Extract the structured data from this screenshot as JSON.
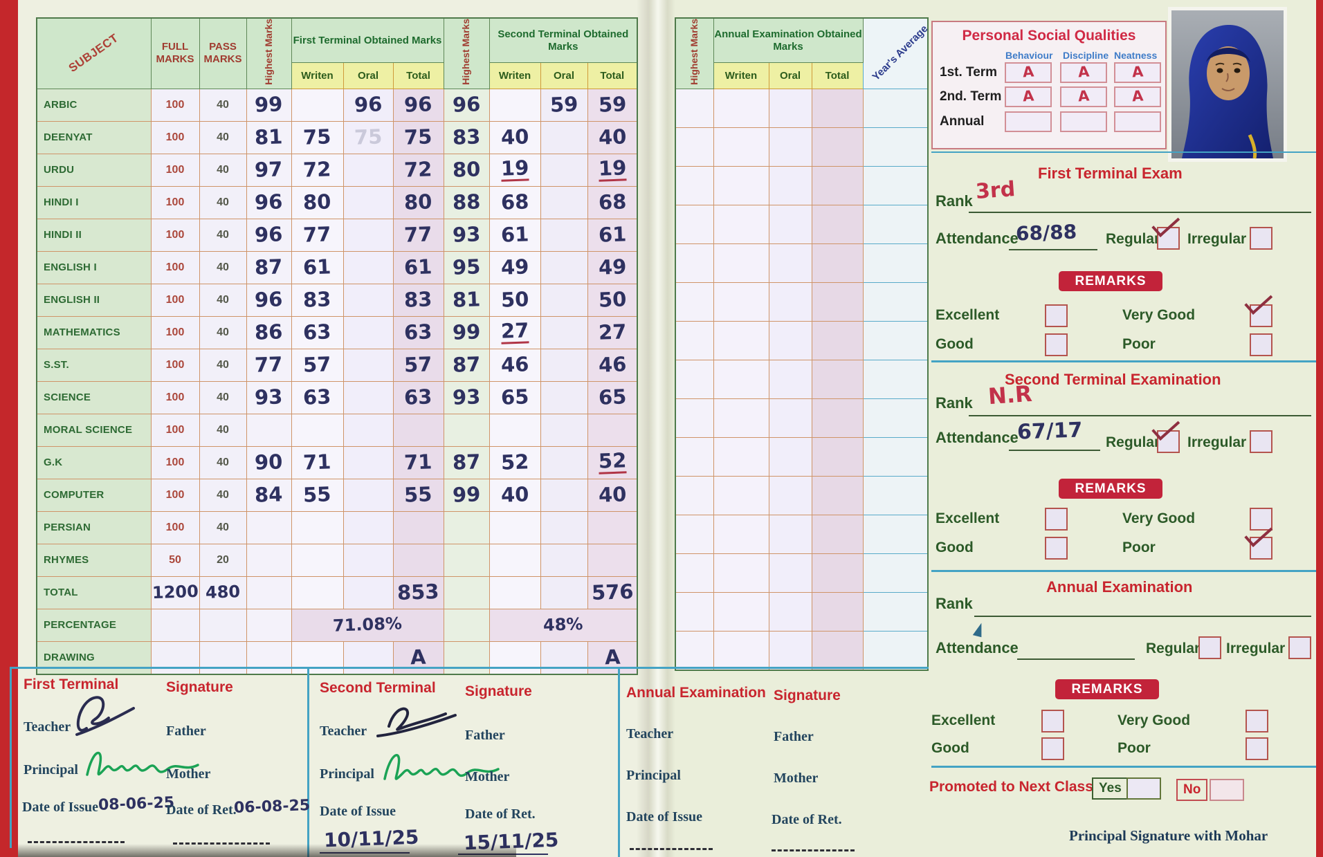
{
  "left_table": {
    "header": {
      "subject": "SUBJECT",
      "full": "FULL MARKS",
      "pass": "PASS MARKS",
      "highest": "Highest Marks",
      "first_terminal": "First Terminal Obtained Marks",
      "second_terminal": "Second Terminal Obtained Marks",
      "written": "Writen",
      "oral": "Oral",
      "total": "Total"
    },
    "rows": [
      {
        "subject": "ARBIC",
        "full": "100",
        "pass": "40",
        "h1": "99",
        "w1": "",
        "o1": "96",
        "t1": "96",
        "h2": "96",
        "w2": "",
        "o2": "59",
        "t2": "59"
      },
      {
        "subject": "DEENYAT",
        "full": "100",
        "pass": "40",
        "h1": "81",
        "w1": "75",
        "o1": "75",
        "o1_faint": true,
        "t1": "75",
        "h2": "83",
        "w2": "40",
        "o2": "",
        "t2": "40"
      },
      {
        "subject": "URDU",
        "full": "100",
        "pass": "40",
        "h1": "97",
        "w1": "72",
        "o1": "",
        "t1": "72",
        "h2": "80",
        "w2": "19",
        "u2w": true,
        "o2": "",
        "t2": "19",
        "u2t": true
      },
      {
        "subject": "HINDI I",
        "full": "100",
        "pass": "40",
        "h1": "96",
        "w1": "80",
        "o1": "",
        "t1": "80",
        "h2": "88",
        "w2": "68",
        "o2": "",
        "t2": "68"
      },
      {
        "subject": "HINDI II",
        "full": "100",
        "pass": "40",
        "h1": "96",
        "w1": "77",
        "o1": "",
        "t1": "77",
        "h2": "93",
        "w2": "61",
        "o2": "",
        "t2": "61"
      },
      {
        "subject": "ENGLISH I",
        "full": "100",
        "pass": "40",
        "h1": "87",
        "w1": "61",
        "o1": "",
        "t1": "61",
        "h2": "95",
        "w2": "49",
        "o2": "",
        "t2": "49"
      },
      {
        "subject": "ENGLISH II",
        "full": "100",
        "pass": "40",
        "h1": "96",
        "w1": "83",
        "o1": "",
        "t1": "83",
        "h2": "81",
        "w2": "50",
        "o2": "",
        "t2": "50"
      },
      {
        "subject": "MATHEMATICS",
        "full": "100",
        "pass": "40",
        "h1": "86",
        "w1": "63",
        "o1": "",
        "t1": "63",
        "h2": "99",
        "w2": "27",
        "u2w": true,
        "o2": "",
        "t2": "27"
      },
      {
        "subject": "S.ST.",
        "full": "100",
        "pass": "40",
        "h1": "77",
        "w1": "57",
        "o1": "",
        "t1": "57",
        "h2": "87",
        "w2": "46",
        "o2": "",
        "t2": "46"
      },
      {
        "subject": "SCIENCE",
        "full": "100",
        "pass": "40",
        "h1": "93",
        "w1": "63",
        "o1": "",
        "t1": "63",
        "h2": "93",
        "w2": "65",
        "o2": "",
        "t2": "65"
      },
      {
        "subject": "MORAL SCIENCE",
        "full": "100",
        "pass": "40",
        "h1": "",
        "w1": "",
        "o1": "",
        "t1": "",
        "h2": "",
        "w2": "",
        "o2": "",
        "t2": ""
      },
      {
        "subject": "G.K",
        "full": "100",
        "pass": "40",
        "h1": "90",
        "w1": "71",
        "o1": "",
        "t1": "71",
        "h2": "87",
        "w2": "52",
        "o2": "",
        "t2": "52",
        "u2t": true
      },
      {
        "subject": "COMPUTER",
        "full": "100",
        "pass": "40",
        "h1": "84",
        "w1": "55",
        "o1": "",
        "t1": "55",
        "h2": "99",
        "w2": "40",
        "o2": "",
        "t2": "40"
      },
      {
        "subject": "PERSIAN",
        "full": "100",
        "pass": "40",
        "h1": "",
        "w1": "",
        "o1": "",
        "t1": "",
        "h2": "",
        "w2": "",
        "o2": "",
        "t2": ""
      },
      {
        "subject": "RHYMES",
        "full": "50",
        "pass": "20",
        "h1": "",
        "w1": "",
        "o1": "",
        "t1": "",
        "h2": "",
        "w2": "",
        "o2": "",
        "t2": ""
      },
      {
        "subject": "TOTAL",
        "full": "1200",
        "pass": "480",
        "fp_hw": true,
        "h1": "",
        "w1": "",
        "o1": "",
        "t1": "853",
        "h2": "",
        "w2": "",
        "o2": "",
        "t2": "576"
      },
      {
        "subject": "PERCENTAGE",
        "full": "",
        "pass": "",
        "t1_span": "71.08%",
        "t2_span": "48%"
      },
      {
        "subject": "DRAWING",
        "full": "",
        "pass": "",
        "h1": "",
        "w1": "",
        "o1": "",
        "t1": "A",
        "h2": "",
        "w2": "",
        "o2": "",
        "t2": "A"
      }
    ]
  },
  "annual_grid": {
    "highest": "Highest Marks",
    "title": "Annual Examination Obtained Marks",
    "written": "Writen",
    "oral": "Oral",
    "total": "Total",
    "years_average": "Year's Average",
    "row_count": 15
  },
  "psq": {
    "title": "Personal Social Qualities",
    "columns": [
      "Behaviour",
      "Discipline",
      "Neatness"
    ],
    "rows": [
      {
        "label": "1st. Term",
        "values": [
          "A",
          "A",
          "A"
        ]
      },
      {
        "label": "2nd. Term",
        "values": [
          "A",
          "A",
          "A"
        ]
      },
      {
        "label": "Annual",
        "values": [
          "",
          "",
          ""
        ]
      }
    ]
  },
  "sections": [
    {
      "title": "First Terminal Exam",
      "rank_label": "Rank",
      "rank_value": "3rd",
      "attendance_label": "Attendance",
      "attendance_value": "68/88",
      "regular_label": "Regular",
      "irregular_label": "Irregular",
      "regular_checked": true,
      "irregular_checked": false,
      "remarks_label": "REMARKS",
      "options": [
        {
          "label": "Excellent",
          "checked": false
        },
        {
          "label": "Very Good",
          "checked": true
        },
        {
          "label": "Good",
          "checked": false
        },
        {
          "label": "Poor",
          "checked": false
        }
      ]
    },
    {
      "title": "Second Terminal Examination",
      "rank_label": "Rank",
      "rank_value": "N.R",
      "attendance_label": "Attendance",
      "attendance_value": "67/17",
      "regular_label": "Regular",
      "irregular_label": "Irregular",
      "regular_checked": true,
      "irregular_checked": false,
      "remarks_label": "REMARKS",
      "options": [
        {
          "label": "Excellent",
          "checked": false
        },
        {
          "label": "Very Good",
          "checked": false
        },
        {
          "label": "Good",
          "checked": false
        },
        {
          "label": "Poor",
          "checked": true
        }
      ]
    },
    {
      "title": "Annual Examination",
      "rank_label": "Rank",
      "rank_value": "",
      "attendance_label": "Attendance",
      "attendance_value": "",
      "regular_label": "Regular",
      "irregular_label": "Irregular",
      "regular_checked": false,
      "irregular_checked": false,
      "remarks_label": "REMARKS",
      "options": [
        {
          "label": "Excellent",
          "checked": false
        },
        {
          "label": "Very Good",
          "checked": false
        },
        {
          "label": "Good",
          "checked": false
        },
        {
          "label": "Poor",
          "checked": false
        }
      ]
    }
  ],
  "promoted": {
    "label": "Promoted to Next Class",
    "yes_label": "Yes",
    "no_label": "No",
    "yes_checked": false,
    "no_checked": false
  },
  "principal_mohar": "Principal Signature with Mohar",
  "bottom_sections": [
    {
      "title": "First Terminal",
      "signature_label": "Signature",
      "teacher_label": "Teacher",
      "father_label": "Father",
      "principal_label": "Principal",
      "mother_label": "Mother",
      "date_issue_label": "Date of Issue",
      "date_ret_label": "Date of Ret.",
      "date_issue": "08-06-25",
      "date_ret": "06-08-25",
      "teacher_signed": true,
      "principal_signed": true
    },
    {
      "title": "Second Terminal",
      "signature_label": "Signature",
      "teacher_label": "Teacher",
      "father_label": "Father",
      "principal_label": "Principal",
      "mother_label": "Mother",
      "date_issue_label": "Date of Issue",
      "date_ret_label": "Date of Ret.",
      "date_issue": "10/11/25",
      "date_ret": "15/11/25",
      "teacher_signed": true,
      "principal_signed": true
    },
    {
      "title": "Annual Examination",
      "signature_label": "Signature",
      "teacher_label": "Teacher",
      "father_label": "Father",
      "principal_label": "Principal",
      "mother_label": "Mother",
      "date_issue_label": "Date of Issue",
      "date_ret_label": "Date of Ret.",
      "date_issue": "",
      "date_ret": "",
      "teacher_signed": false,
      "principal_signed": false
    }
  ]
}
